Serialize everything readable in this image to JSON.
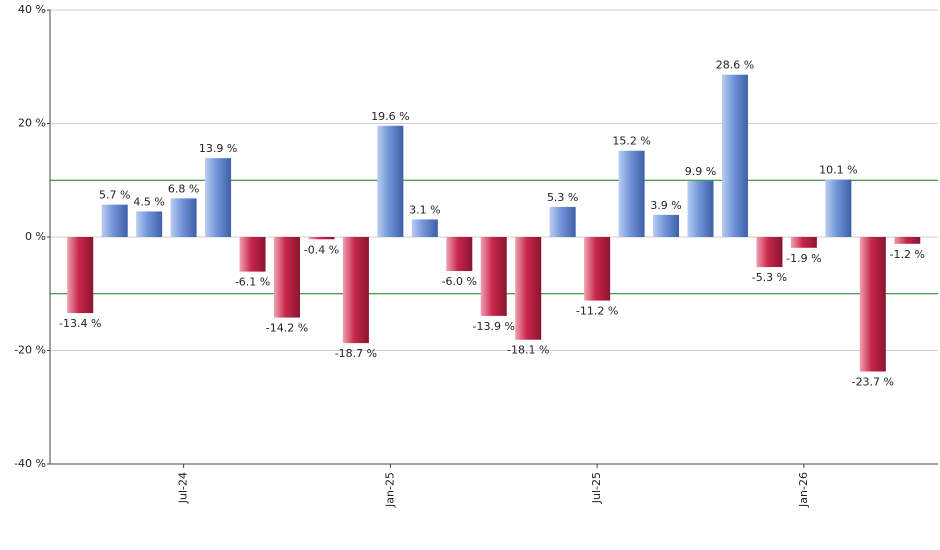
{
  "chart_data": {
    "type": "bar",
    "categories": [
      null,
      null,
      null,
      "Jul-24",
      null,
      null,
      null,
      null,
      null,
      "Jan-25",
      null,
      null,
      null,
      null,
      null,
      "Jul-25",
      null,
      null,
      null,
      null,
      null,
      "Jan-26",
      null,
      null,
      null
    ],
    "values": [
      -13.4,
      5.7,
      4.5,
      6.8,
      13.9,
      -6.1,
      -14.2,
      -0.4,
      -18.7,
      19.6,
      3.1,
      -6.0,
      -13.9,
      -18.1,
      5.3,
      -11.2,
      15.2,
      3.9,
      9.9,
      28.6,
      -5.3,
      -1.9,
      10.1,
      -23.7,
      -1.2
    ],
    "value_labels": [
      "-13.4 %",
      "5.7 %",
      "4.5 %",
      "6.8 %",
      "13.9 %",
      "-6.1 %",
      "-14.2 %",
      "-0.4 %",
      "-18.7 %",
      "19.6 %",
      "3.1 %",
      "-6.0 %",
      "-13.9 %",
      "-18.1 %",
      "5.3 %",
      "-11.2 %",
      "15.2 %",
      "3.9 %",
      "9.9 %",
      "28.6 %",
      "-5.3 %",
      "-1.9 %",
      "10.1 %",
      "-23.7 %",
      "-1.2 %"
    ],
    "positive_color": "#7094d8",
    "negative_color": "#c8264a",
    "ylim": [
      -40,
      40
    ],
    "yticks": [
      {
        "value": -40,
        "label": "-40 %"
      },
      {
        "value": -20,
        "label": "-20 %"
      },
      {
        "value": 0,
        "label": "0 %"
      },
      {
        "value": 20,
        "label": "20 %"
      },
      {
        "value": 40,
        "label": "40 %"
      }
    ],
    "reference_lines": [
      10,
      -10
    ],
    "reference_color": "#1a7a1a",
    "grid": true
  }
}
